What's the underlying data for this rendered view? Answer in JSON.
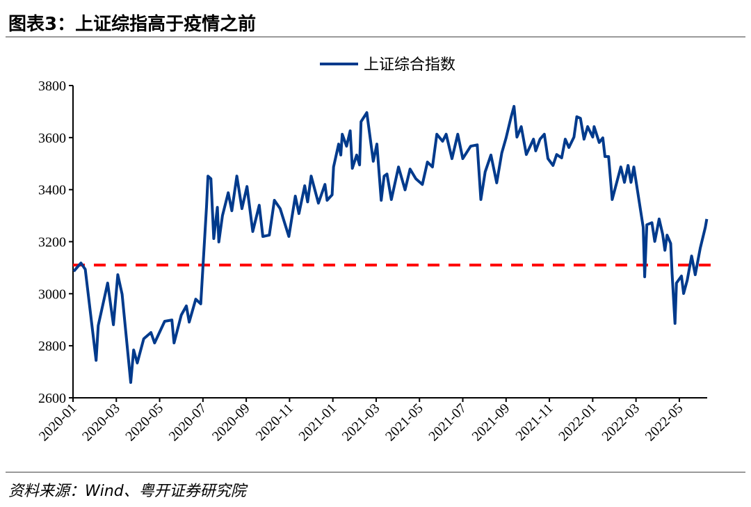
{
  "header": {
    "title": "图表3：上证综指高于疫情之前"
  },
  "footer": {
    "source": "资料来源：Wind、粤开证券研究院"
  },
  "chart_data": {
    "type": "line",
    "title": "",
    "xlabel": "",
    "ylabel": "",
    "ylim": [
      2600,
      3800
    ],
    "yticks": [
      "2600",
      "2800",
      "3000",
      "3200",
      "3400",
      "3600",
      "3800"
    ],
    "xticks": [
      "2020-01",
      "2020-03",
      "2020-05",
      "2020-07",
      "2020-09",
      "2020-11",
      "2021-01",
      "2021-03",
      "2021-05",
      "2021-07",
      "2021-09",
      "2021-11",
      "2022-01",
      "2022-03",
      "2022-05"
    ],
    "grid": false,
    "legend_position": "top-center",
    "colors": {
      "series": "#003a8c",
      "reference": "#ff0000"
    },
    "reference_line": {
      "value": 3110,
      "style": "dashed"
    },
    "series": [
      {
        "name": "上证综合指数",
        "points": [
          [
            "2020-01-02",
            3086
          ],
          [
            "2020-01-12",
            3118
          ],
          [
            "2020-01-18",
            3094
          ],
          [
            "2020-02-03",
            2744
          ],
          [
            "2020-02-06",
            2878
          ],
          [
            "2020-02-19",
            3041
          ],
          [
            "2020-02-27",
            2881
          ],
          [
            "2020-03-03",
            3073
          ],
          [
            "2020-03-09",
            2998
          ],
          [
            "2020-03-21",
            2659
          ],
          [
            "2020-03-25",
            2784
          ],
          [
            "2020-03-30",
            2734
          ],
          [
            "2020-04-09",
            2827
          ],
          [
            "2020-04-19",
            2851
          ],
          [
            "2020-04-24",
            2811
          ],
          [
            "2020-05-08",
            2894
          ],
          [
            "2020-05-18",
            2899
          ],
          [
            "2020-05-21",
            2811
          ],
          [
            "2020-06-01",
            2918
          ],
          [
            "2020-06-08",
            2953
          ],
          [
            "2020-06-12",
            2891
          ],
          [
            "2020-06-21",
            2979
          ],
          [
            "2020-06-28",
            2961
          ],
          [
            "2020-07-06",
            3335
          ],
          [
            "2020-07-08",
            3452
          ],
          [
            "2020-07-12",
            3442
          ],
          [
            "2020-07-16",
            3212
          ],
          [
            "2020-07-21",
            3332
          ],
          [
            "2020-07-23",
            3199
          ],
          [
            "2020-07-28",
            3300
          ],
          [
            "2020-08-06",
            3388
          ],
          [
            "2020-08-11",
            3319
          ],
          [
            "2020-08-18",
            3452
          ],
          [
            "2020-08-25",
            3327
          ],
          [
            "2020-09-02",
            3412
          ],
          [
            "2020-09-10",
            3239
          ],
          [
            "2020-09-19",
            3340
          ],
          [
            "2020-09-24",
            3220
          ],
          [
            "2020-10-03",
            3225
          ],
          [
            "2020-10-10",
            3359
          ],
          [
            "2020-10-18",
            3327
          ],
          [
            "2020-10-30",
            3220
          ],
          [
            "2020-11-09",
            3375
          ],
          [
            "2020-11-14",
            3308
          ],
          [
            "2020-11-22",
            3415
          ],
          [
            "2020-11-26",
            3353
          ],
          [
            "2020-12-01",
            3452
          ],
          [
            "2020-12-11",
            3348
          ],
          [
            "2020-12-20",
            3420
          ],
          [
            "2020-12-23",
            3359
          ],
          [
            "2020-12-30",
            3380
          ],
          [
            "2021-01-02",
            3487
          ],
          [
            "2021-01-09",
            3575
          ],
          [
            "2021-01-12",
            3533
          ],
          [
            "2021-01-14",
            3613
          ],
          [
            "2021-01-20",
            3567
          ],
          [
            "2021-01-25",
            3626
          ],
          [
            "2021-01-28",
            3482
          ],
          [
            "2021-02-04",
            3533
          ],
          [
            "2021-02-08",
            3495
          ],
          [
            "2021-02-10",
            3661
          ],
          [
            "2021-02-18",
            3696
          ],
          [
            "2021-02-27",
            3509
          ],
          [
            "2021-03-02",
            3575
          ],
          [
            "2021-03-08",
            3359
          ],
          [
            "2021-03-12",
            3452
          ],
          [
            "2021-03-16",
            3460
          ],
          [
            "2021-03-22",
            3362
          ],
          [
            "2021-04-02",
            3487
          ],
          [
            "2021-04-11",
            3399
          ],
          [
            "2021-04-18",
            3479
          ],
          [
            "2021-04-26",
            3442
          ],
          [
            "2021-05-05",
            3420
          ],
          [
            "2021-05-12",
            3506
          ],
          [
            "2021-05-19",
            3487
          ],
          [
            "2021-05-25",
            3613
          ],
          [
            "2021-06-03",
            3586
          ],
          [
            "2021-06-08",
            3613
          ],
          [
            "2021-06-16",
            3519
          ],
          [
            "2021-06-24",
            3613
          ],
          [
            "2021-07-01",
            3519
          ],
          [
            "2021-07-12",
            3567
          ],
          [
            "2021-07-21",
            3572
          ],
          [
            "2021-07-26",
            3362
          ],
          [
            "2021-08-02",
            3468
          ],
          [
            "2021-08-10",
            3533
          ],
          [
            "2021-08-18",
            3426
          ],
          [
            "2021-08-25",
            3541
          ],
          [
            "2021-09-01",
            3599
          ],
          [
            "2021-09-08",
            3680
          ],
          [
            "2021-09-12",
            3720
          ],
          [
            "2021-09-16",
            3602
          ],
          [
            "2021-09-22",
            3642
          ],
          [
            "2021-09-29",
            3535
          ],
          [
            "2021-10-09",
            3594
          ],
          [
            "2021-10-12",
            3549
          ],
          [
            "2021-10-18",
            3594
          ],
          [
            "2021-10-24",
            3613
          ],
          [
            "2021-10-29",
            3519
          ],
          [
            "2021-11-06",
            3493
          ],
          [
            "2021-11-11",
            3535
          ],
          [
            "2021-11-18",
            3522
          ],
          [
            "2021-11-23",
            3594
          ],
          [
            "2021-11-28",
            3562
          ],
          [
            "2021-12-05",
            3602
          ],
          [
            "2021-12-09",
            3680
          ],
          [
            "2021-12-14",
            3674
          ],
          [
            "2021-12-19",
            3594
          ],
          [
            "2021-12-24",
            3642
          ],
          [
            "2021-12-31",
            3602
          ],
          [
            "2022-01-03",
            3642
          ],
          [
            "2022-01-10",
            3581
          ],
          [
            "2022-01-15",
            3599
          ],
          [
            "2022-01-18",
            3527
          ],
          [
            "2022-01-23",
            3527
          ],
          [
            "2022-01-28",
            3362
          ],
          [
            "2022-02-10",
            3487
          ],
          [
            "2022-02-15",
            3428
          ],
          [
            "2022-02-20",
            3493
          ],
          [
            "2022-02-24",
            3428
          ],
          [
            "2022-02-28",
            3487
          ],
          [
            "2022-03-08",
            3308
          ],
          [
            "2022-03-11",
            3255
          ],
          [
            "2022-03-13",
            3065
          ],
          [
            "2022-03-16",
            3265
          ],
          [
            "2022-03-23",
            3273
          ],
          [
            "2022-03-27",
            3201
          ],
          [
            "2022-04-03",
            3287
          ],
          [
            "2022-04-08",
            3228
          ],
          [
            "2022-04-11",
            3167
          ],
          [
            "2022-04-14",
            3225
          ],
          [
            "2022-04-19",
            3193
          ],
          [
            "2022-04-21",
            3078
          ],
          [
            "2022-04-25",
            2886
          ],
          [
            "2022-04-27",
            3041
          ],
          [
            "2022-05-04",
            3068
          ],
          [
            "2022-05-07",
            3001
          ],
          [
            "2022-05-12",
            3052
          ],
          [
            "2022-05-18",
            3145
          ],
          [
            "2022-05-23",
            3073
          ],
          [
            "2022-05-30",
            3175
          ],
          [
            "2022-06-07",
            3255
          ],
          [
            "2022-06-09",
            3287
          ]
        ]
      }
    ]
  }
}
